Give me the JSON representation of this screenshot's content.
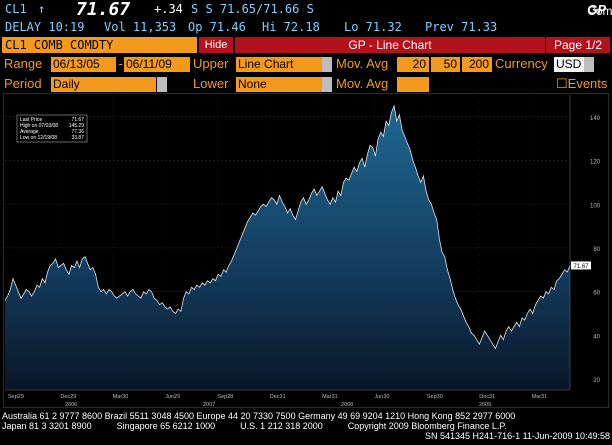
{
  "header": {
    "ticker": "CL1",
    "arrow": "↑",
    "last_price": "71.67",
    "change": "+.34",
    "bid_ask": "S S 71.65/71.66 S",
    "brand_a": "Comdty",
    "brand_b": "GP",
    "delay": "DELAY 10:19",
    "volume": "Vol 11,353",
    "open": "Op 71.46",
    "high": "Hi 72.18",
    "low": "Lo 71.32",
    "prev": "Prev 71.33"
  },
  "titlebar": {
    "security": "CL1 COMB COMDTY",
    "hide_label": "Hide",
    "title": "GP - Line Chart",
    "page": "Page 1/2"
  },
  "settings": {
    "range_label": "Range",
    "start_date": "06/13/05",
    "end_date": "06/11/09",
    "upper_label": "Upper",
    "upper_value": "Line Chart",
    "mov_avg_label": "Mov. Avg",
    "mov_avg_1": "20",
    "mov_avg_2": "50",
    "mov_avg_3": "200",
    "currency_label": "Currency",
    "currency_value": "USD",
    "period_label": "Period",
    "period_value": "Daily",
    "lower_label": "Lower",
    "lower_value": "None",
    "mov_avg_label_2": "Mov. Avg",
    "events_label": "Events"
  },
  "legend": {
    "rows": [
      {
        "label": "Last Price",
        "value": "71.67"
      },
      {
        "label": "High on 07/03/08",
        "value": "145.29"
      },
      {
        "label": "Average",
        "value": "77.36"
      },
      {
        "label": "Low on 12/19/08",
        "value": "33.87"
      }
    ]
  },
  "chart_data": {
    "type": "area",
    "x_ticks": [
      "Sep29",
      "Dec29",
      "Mar30",
      "Jun29",
      "Sep28",
      "Dec31",
      "Mar31",
      "Jun30",
      "Sep30",
      "Dec31",
      "Mar31"
    ],
    "year_labels": [
      "2006",
      "2007",
      "2008",
      "2009"
    ],
    "y_ticks": [
      20,
      40,
      60,
      80,
      100,
      120,
      140
    ],
    "ylim": [
      15,
      150
    ],
    "last_value_tag": "71.67",
    "series": [
      {
        "values": [
          56,
          58,
          61,
          66,
          63,
          60,
          57,
          59,
          61,
          60,
          58,
          60,
          63,
          62,
          66,
          64,
          69,
          72,
          73,
          75,
          71,
          72,
          73,
          70,
          68,
          72,
          71,
          74,
          71,
          75,
          76,
          73,
          70,
          71,
          68,
          62,
          60,
          61,
          59,
          61,
          60,
          58,
          57,
          58,
          59,
          60,
          58,
          60,
          61,
          59,
          58,
          57,
          60,
          59,
          61,
          60,
          57,
          56,
          54,
          55,
          53,
          52,
          53,
          51,
          50,
          52,
          51,
          57,
          60,
          59,
          62,
          61,
          63,
          62,
          64,
          63,
          65,
          64,
          66,
          65,
          68,
          67,
          70,
          69,
          72,
          74,
          77,
          80,
          83,
          86,
          89,
          92,
          94,
          96,
          95,
          97,
          99,
          100,
          99,
          101,
          103,
          102,
          100,
          104,
          101,
          99,
          96,
          98,
          95,
          93,
          97,
          101,
          103,
          100,
          102,
          105,
          107,
          104,
          106,
          108,
          105,
          102,
          100,
          103,
          101,
          106,
          104,
          110,
          112,
          111,
          114,
          117,
          115,
          119,
          121,
          117,
          123,
          127,
          126,
          122,
          130,
          133,
          131,
          138,
          136,
          142,
          145,
          138,
          141,
          134,
          131,
          128,
          125,
          120,
          117,
          113,
          110,
          113,
          106,
          102,
          100,
          96,
          93,
          84,
          78,
          76,
          70,
          66,
          61,
          57,
          54,
          52,
          49,
          46,
          44,
          41,
          40,
          38,
          36,
          39,
          42,
          40,
          38,
          36,
          34,
          37,
          40,
          38,
          42,
          44,
          42,
          44,
          46,
          44,
          48,
          47,
          50,
          52,
          50,
          54,
          56,
          58,
          57,
          60,
          59,
          62,
          61,
          65,
          66,
          68,
          70,
          69,
          72
        ]
      }
    ]
  },
  "footer": {
    "line1": "Australia 61 2 9777 8600 Brazil 5511 3048 4500 Europe 44 20 7330 7500 Germany 49 69 9204 1210 Hong Kong 852 2977 6000",
    "line2": "Japan 81 3 3201 8900          Singapore 65 6212 1000          U.S. 1 212 318 2000          Copyright 2009 Bloomberg Finance L.P.",
    "line3": "SN 541345 H241-716-1 11-Jun-2009 10:49:58"
  },
  "colors": {
    "accent": "#f39a1c",
    "title_red": "#b3121c",
    "cyan": "#7fd0ff",
    "area_top": "#1a5a85",
    "area_bottom": "#0b1f35"
  }
}
